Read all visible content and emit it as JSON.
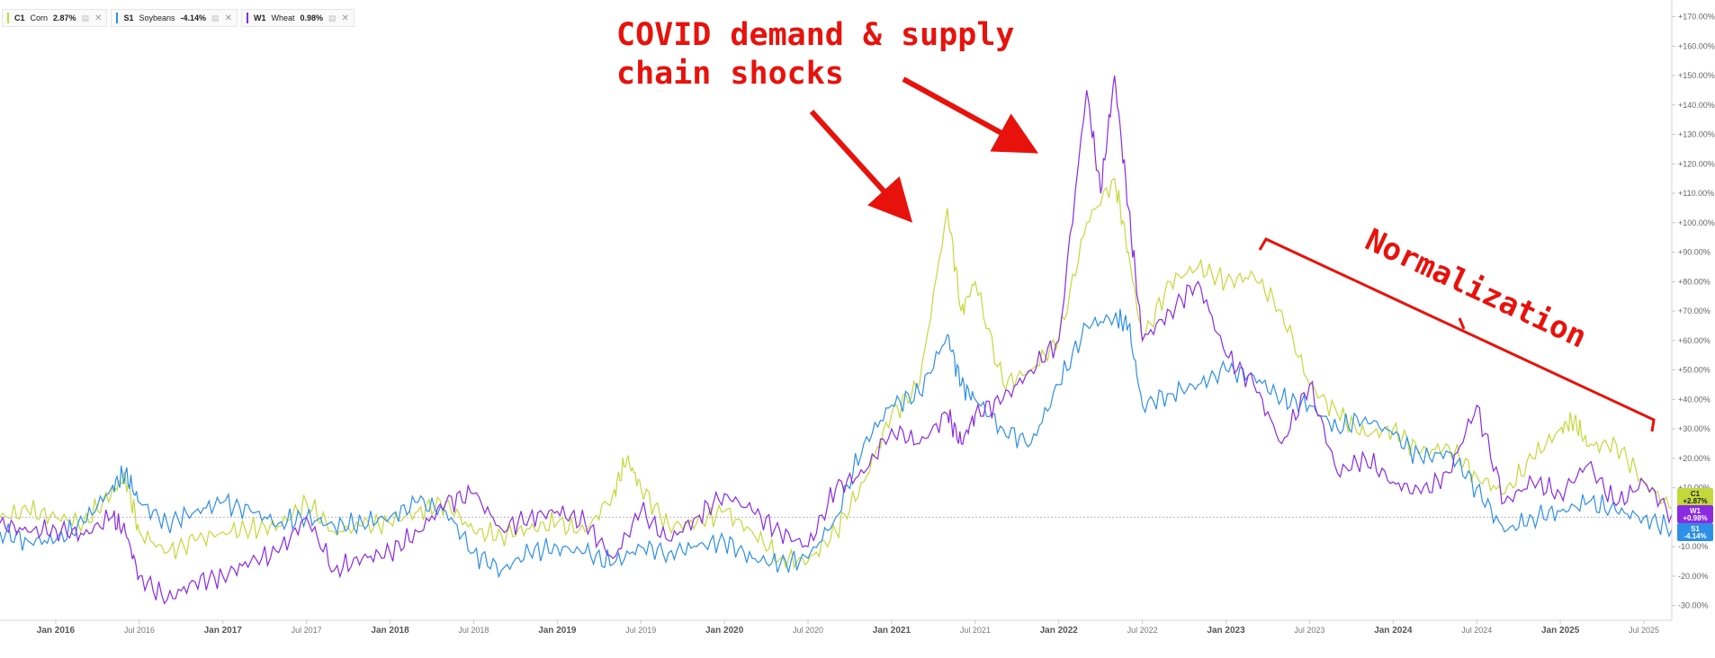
{
  "legend": [
    {
      "symbol": "C1",
      "name": "Corn",
      "change": "2.87%",
      "color": "#c3d93b"
    },
    {
      "symbol": "S1",
      "name": "Soybeans",
      "change": "-4.14%",
      "color": "#2e8fe6"
    },
    {
      "symbol": "W1",
      "name": "Wheat",
      "change": "0.98%",
      "color": "#8a2be2"
    }
  ],
  "price_tags": [
    {
      "symbol": "C1",
      "value": "+2.87%",
      "color": "#c3d93b"
    },
    {
      "symbol": "W1",
      "value": "+0.98%",
      "color": "#8a2be2"
    },
    {
      "symbol": "S1",
      "value": "-4.14%",
      "color": "#2e8fe6"
    }
  ],
  "annotations": {
    "covid_text_line1": "COVID demand & supply",
    "covid_text_line2": "chain shocks",
    "normalization_text": "Normalization",
    "annotation_color": "#e8120c"
  },
  "chart_data": {
    "type": "line",
    "title": "",
    "xlabel": "",
    "ylabel": "",
    "ylim": [
      -35,
      172
    ],
    "y_ticks": [
      -30,
      -20,
      -10,
      10,
      20,
      30,
      40,
      50,
      60,
      70,
      80,
      90,
      100,
      110,
      120,
      130,
      140,
      150,
      160,
      170
    ],
    "y_tick_labels": [
      "-30.00%",
      "-20.00%",
      "-10.00%",
      "+10.00%",
      "+20.00%",
      "+30.00%",
      "+40.00%",
      "+50.00%",
      "+60.00%",
      "+70.00%",
      "+80.00%",
      "+90.00%",
      "+100.00%",
      "+110.00%",
      "+120.00%",
      "+130.00%",
      "+140.00%",
      "+150.00%",
      "+160.00%",
      "+170.00%"
    ],
    "x_range": [
      "2015-09",
      "2025-09"
    ],
    "x_ticks": [
      {
        "date": "2016-01",
        "label": "Jan 2016",
        "major": true
      },
      {
        "date": "2016-07",
        "label": "Jul 2016",
        "major": false
      },
      {
        "date": "2017-01",
        "label": "Jan 2017",
        "major": true
      },
      {
        "date": "2017-07",
        "label": "Jul 2017",
        "major": false
      },
      {
        "date": "2018-01",
        "label": "Jan 2018",
        "major": true
      },
      {
        "date": "2018-07",
        "label": "Jul 2018",
        "major": false
      },
      {
        "date": "2019-01",
        "label": "Jan 2019",
        "major": true
      },
      {
        "date": "2019-07",
        "label": "Jul 2019",
        "major": false
      },
      {
        "date": "2020-01",
        "label": "Jan 2020",
        "major": true
      },
      {
        "date": "2020-07",
        "label": "Jul 2020",
        "major": false
      },
      {
        "date": "2021-01",
        "label": "Jan 2021",
        "major": true
      },
      {
        "date": "2021-07",
        "label": "Jul 2021",
        "major": false
      },
      {
        "date": "2022-01",
        "label": "Jan 2022",
        "major": true
      },
      {
        "date": "2022-07",
        "label": "Jul 2022",
        "major": false
      },
      {
        "date": "2023-01",
        "label": "Jan 2023",
        "major": true
      },
      {
        "date": "2023-07",
        "label": "Jul 2023",
        "major": false
      },
      {
        "date": "2024-01",
        "label": "Jan 2024",
        "major": true
      },
      {
        "date": "2024-07",
        "label": "Jul 2024",
        "major": false
      },
      {
        "date": "2025-01",
        "label": "Jan 2025",
        "major": true
      },
      {
        "date": "2025-07",
        "label": "Jul 2025",
        "major": false
      }
    ],
    "series": [
      {
        "name": "Corn",
        "color": "#c3d93b",
        "points": [
          [
            "2015-09",
            0
          ],
          [
            "2015-11",
            2
          ],
          [
            "2016-01",
            0
          ],
          [
            "2016-03",
            -2
          ],
          [
            "2016-05",
            8
          ],
          [
            "2016-06",
            14
          ],
          [
            "2016-07",
            -5
          ],
          [
            "2016-09",
            -12
          ],
          [
            "2016-11",
            -8
          ],
          [
            "2017-01",
            -5
          ],
          [
            "2017-03",
            -4
          ],
          [
            "2017-05",
            -3
          ],
          [
            "2017-07",
            5
          ],
          [
            "2017-09",
            -5
          ],
          [
            "2017-11",
            -3
          ],
          [
            "2018-01",
            -2
          ],
          [
            "2018-03",
            2
          ],
          [
            "2018-05",
            5
          ],
          [
            "2018-07",
            -5
          ],
          [
            "2018-09",
            -6
          ],
          [
            "2018-11",
            -4
          ],
          [
            "2019-01",
            -2
          ],
          [
            "2019-03",
            -5
          ],
          [
            "2019-05",
            8
          ],
          [
            "2019-06",
            20
          ],
          [
            "2019-07",
            10
          ],
          [
            "2019-09",
            -3
          ],
          [
            "2019-11",
            -2
          ],
          [
            "2020-01",
            2
          ],
          [
            "2020-03",
            -5
          ],
          [
            "2020-05",
            -14
          ],
          [
            "2020-07",
            -15
          ],
          [
            "2020-09",
            -5
          ],
          [
            "2020-11",
            12
          ],
          [
            "2021-01",
            35
          ],
          [
            "2021-03",
            45
          ],
          [
            "2021-05",
            105
          ],
          [
            "2021-06",
            70
          ],
          [
            "2021-07",
            80
          ],
          [
            "2021-09",
            45
          ],
          [
            "2021-11",
            50
          ],
          [
            "2022-01",
            60
          ],
          [
            "2022-03",
            100
          ],
          [
            "2022-05",
            115
          ],
          [
            "2022-06",
            90
          ],
          [
            "2022-07",
            60
          ],
          [
            "2022-09",
            80
          ],
          [
            "2022-11",
            85
          ],
          [
            "2023-01",
            80
          ],
          [
            "2023-03",
            82
          ],
          [
            "2023-05",
            70
          ],
          [
            "2023-07",
            45
          ],
          [
            "2023-09",
            35
          ],
          [
            "2023-11",
            28
          ],
          [
            "2024-01",
            30
          ],
          [
            "2024-03",
            22
          ],
          [
            "2024-05",
            24
          ],
          [
            "2024-07",
            14
          ],
          [
            "2024-09",
            8
          ],
          [
            "2024-11",
            20
          ],
          [
            "2025-01",
            30
          ],
          [
            "2025-02",
            33
          ],
          [
            "2025-03",
            24
          ],
          [
            "2025-05",
            25
          ],
          [
            "2025-07",
            12
          ],
          [
            "2025-09",
            2.87
          ]
        ]
      },
      {
        "name": "Soybeans",
        "color": "#2e8fe6",
        "points": [
          [
            "2015-09",
            -5
          ],
          [
            "2015-11",
            -8
          ],
          [
            "2016-01",
            -8
          ],
          [
            "2016-03",
            -2
          ],
          [
            "2016-05",
            10
          ],
          [
            "2016-06",
            15
          ],
          [
            "2016-07",
            5
          ],
          [
            "2016-09",
            -2
          ],
          [
            "2016-11",
            2
          ],
          [
            "2017-01",
            5
          ],
          [
            "2017-03",
            2
          ],
          [
            "2017-05",
            -2
          ],
          [
            "2017-07",
            0
          ],
          [
            "2017-09",
            -3
          ],
          [
            "2017-11",
            -2
          ],
          [
            "2018-01",
            0
          ],
          [
            "2018-03",
            5
          ],
          [
            "2018-05",
            2
          ],
          [
            "2018-07",
            -12
          ],
          [
            "2018-09",
            -18
          ],
          [
            "2018-11",
            -12
          ],
          [
            "2019-01",
            -10
          ],
          [
            "2019-03",
            -12
          ],
          [
            "2019-05",
            -16
          ],
          [
            "2019-07",
            -10
          ],
          [
            "2019-09",
            -12
          ],
          [
            "2019-11",
            -10
          ],
          [
            "2020-01",
            -8
          ],
          [
            "2020-03",
            -14
          ],
          [
            "2020-05",
            -16
          ],
          [
            "2020-07",
            -14
          ],
          [
            "2020-09",
            0
          ],
          [
            "2020-11",
            25
          ],
          [
            "2021-01",
            38
          ],
          [
            "2021-03",
            42
          ],
          [
            "2021-05",
            62
          ],
          [
            "2021-06",
            45
          ],
          [
            "2021-07",
            40
          ],
          [
            "2021-09",
            30
          ],
          [
            "2021-11",
            25
          ],
          [
            "2022-01",
            45
          ],
          [
            "2022-03",
            65
          ],
          [
            "2022-05",
            68
          ],
          [
            "2022-06",
            65
          ],
          [
            "2022-07",
            38
          ],
          [
            "2022-09",
            42
          ],
          [
            "2022-11",
            45
          ],
          [
            "2023-01",
            50
          ],
          [
            "2023-03",
            48
          ],
          [
            "2023-05",
            40
          ],
          [
            "2023-07",
            38
          ],
          [
            "2023-09",
            30
          ],
          [
            "2023-11",
            34
          ],
          [
            "2024-01",
            28
          ],
          [
            "2024-03",
            20
          ],
          [
            "2024-05",
            22
          ],
          [
            "2024-07",
            10
          ],
          [
            "2024-09",
            -5
          ],
          [
            "2024-11",
            0
          ],
          [
            "2025-01",
            2
          ],
          [
            "2025-03",
            5
          ],
          [
            "2025-05",
            2
          ],
          [
            "2025-07",
            0
          ],
          [
            "2025-09",
            -4.14
          ]
        ]
      },
      {
        "name": "Wheat",
        "color": "#8a2be2",
        "points": [
          [
            "2015-09",
            -2
          ],
          [
            "2015-11",
            -5
          ],
          [
            "2016-01",
            -4
          ],
          [
            "2016-03",
            -6
          ],
          [
            "2016-05",
            0
          ],
          [
            "2016-06",
            -5
          ],
          [
            "2016-07",
            -20
          ],
          [
            "2016-09",
            -28
          ],
          [
            "2016-11",
            -22
          ],
          [
            "2017-01",
            -20
          ],
          [
            "2017-03",
            -15
          ],
          [
            "2017-05",
            -12
          ],
          [
            "2017-07",
            0
          ],
          [
            "2017-09",
            -18
          ],
          [
            "2017-11",
            -14
          ],
          [
            "2018-01",
            -12
          ],
          [
            "2018-03",
            -5
          ],
          [
            "2018-05",
            5
          ],
          [
            "2018-07",
            8
          ],
          [
            "2018-09",
            -4
          ],
          [
            "2018-11",
            0
          ],
          [
            "2019-01",
            2
          ],
          [
            "2019-03",
            -2
          ],
          [
            "2019-05",
            -14
          ],
          [
            "2019-07",
            2
          ],
          [
            "2019-09",
            -8
          ],
          [
            "2019-11",
            0
          ],
          [
            "2020-01",
            8
          ],
          [
            "2020-03",
            2
          ],
          [
            "2020-05",
            -5
          ],
          [
            "2020-07",
            -10
          ],
          [
            "2020-09",
            10
          ],
          [
            "2020-11",
            15
          ],
          [
            "2021-01",
            30
          ],
          [
            "2021-03",
            25
          ],
          [
            "2021-05",
            35
          ],
          [
            "2021-06",
            25
          ],
          [
            "2021-07",
            35
          ],
          [
            "2021-09",
            40
          ],
          [
            "2021-11",
            50
          ],
          [
            "2022-01",
            60
          ],
          [
            "2022-03",
            145
          ],
          [
            "2022-04",
            110
          ],
          [
            "2022-05",
            150
          ],
          [
            "2022-06",
            105
          ],
          [
            "2022-07",
            60
          ],
          [
            "2022-09",
            70
          ],
          [
            "2022-11",
            80
          ],
          [
            "2023-01",
            55
          ],
          [
            "2023-03",
            45
          ],
          [
            "2023-05",
            25
          ],
          [
            "2023-07",
            45
          ],
          [
            "2023-09",
            15
          ],
          [
            "2023-11",
            20
          ],
          [
            "2024-01",
            12
          ],
          [
            "2024-03",
            8
          ],
          [
            "2024-05",
            15
          ],
          [
            "2024-07",
            38
          ],
          [
            "2024-09",
            5
          ],
          [
            "2024-11",
            12
          ],
          [
            "2025-01",
            8
          ],
          [
            "2025-03",
            18
          ],
          [
            "2025-05",
            4
          ],
          [
            "2025-07",
            12
          ],
          [
            "2025-09",
            0.98
          ]
        ]
      }
    ]
  }
}
